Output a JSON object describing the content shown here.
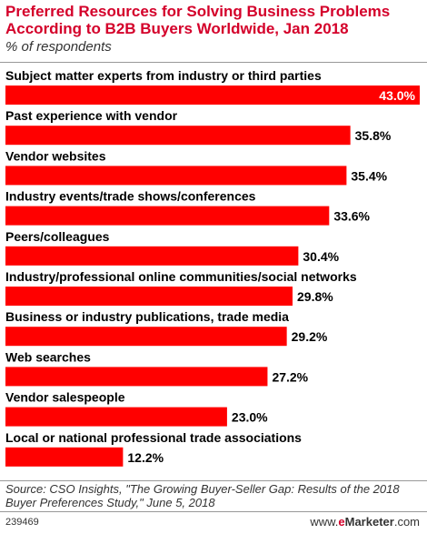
{
  "header": {
    "title": "Preferred Resources for Solving Business Problems According to B2B Buyers Worldwide, Jan 2018",
    "subtitle": "% of respondents"
  },
  "colors": {
    "bar": "#ff0000",
    "title": "#d4002a"
  },
  "chart_data": {
    "type": "bar",
    "orientation": "horizontal",
    "title": "Preferred Resources for Solving Business Problems According to B2B Buyers Worldwide, Jan 2018",
    "subtitle": "% of respondents",
    "xlim": [
      0,
      43
    ],
    "grid": false,
    "categories": [
      "Subject matter experts from industry or third parties",
      "Past experience with vendor",
      "Vendor websites",
      "Industry events/trade shows/conferences",
      "Peers/colleagues",
      "Industry/professional online communities/social networks",
      "Business or industry publications, trade media",
      "Web searches",
      "Vendor salespeople",
      "Local or national professional trade associations"
    ],
    "values": [
      43.0,
      35.8,
      35.4,
      33.6,
      30.4,
      29.8,
      29.2,
      27.2,
      23.0,
      12.2
    ],
    "value_labels": [
      "43.0%",
      "35.8%",
      "35.4%",
      "33.6%",
      "30.4%",
      "29.8%",
      "29.2%",
      "27.2%",
      "23.0%",
      "12.2%"
    ]
  },
  "footer": {
    "source": "Source: CSO Insights, \"The Growing Buyer-Seller Gap: Results of the 2018 Buyer Preferences Study,\" June 5, 2018",
    "chart_id": "239469",
    "brand_prefix": "www.",
    "brand_e": "e",
    "brand_name": "Marketer",
    "brand_suffix": ".com"
  }
}
